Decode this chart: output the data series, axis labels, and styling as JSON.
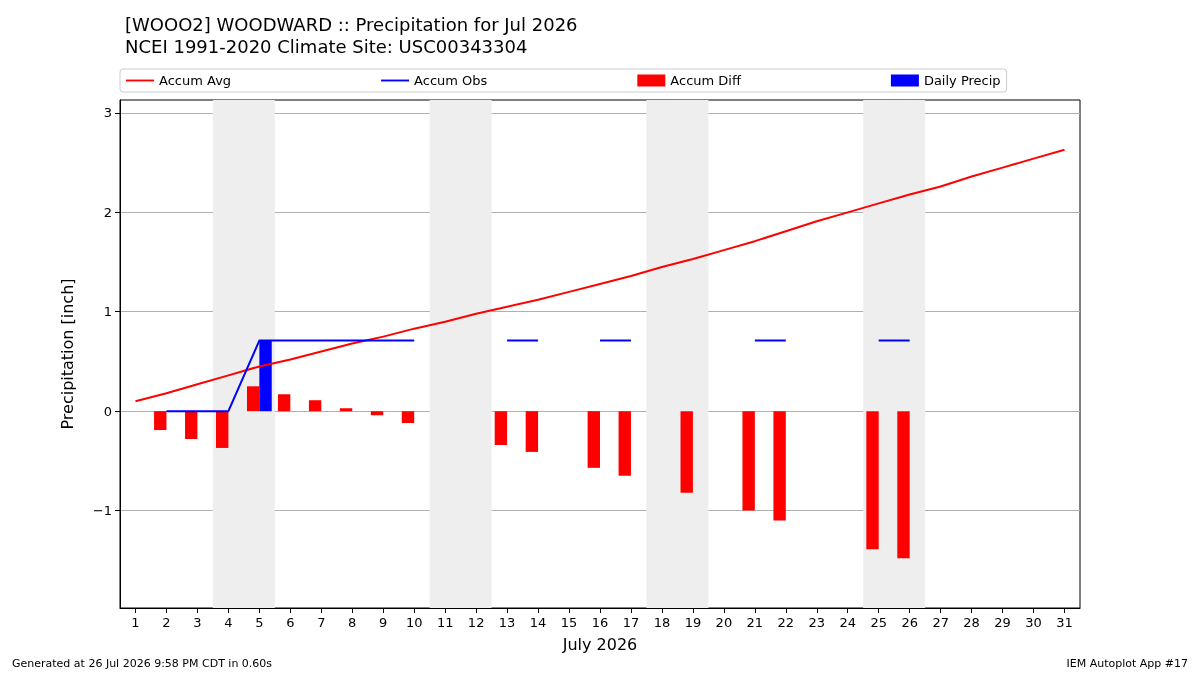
{
  "chart_data": {
    "type": "bar",
    "title": "[WOOO2] WOODWARD :: Precipitation for Jul 2026",
    "subtitle": "NCEI 1991-2020 Climate Site: USC00343304",
    "xlabel": "July 2026",
    "ylabel": "Precipitation [inch]",
    "x": [
      1,
      2,
      3,
      4,
      5,
      6,
      7,
      8,
      9,
      10,
      11,
      12,
      13,
      14,
      15,
      16,
      17,
      18,
      19,
      20,
      21,
      22,
      23,
      24,
      25,
      26,
      27,
      28,
      29,
      30,
      31
    ],
    "series": [
      {
        "name": "Accum Avg",
        "type": "line",
        "color": "#ff0000",
        "values": [
          0.1,
          0.18,
          0.27,
          0.36,
          0.45,
          0.52,
          0.6,
          0.68,
          0.75,
          0.83,
          0.9,
          0.98,
          1.05,
          1.12,
          1.2,
          1.28,
          1.36,
          1.45,
          1.53,
          1.62,
          1.71,
          1.81,
          1.91,
          2.0,
          2.09,
          2.18,
          2.26,
          2.36,
          2.45,
          2.54,
          2.63
        ]
      },
      {
        "name": "Accum Obs",
        "type": "line",
        "color": "#0000ff",
        "values": [
          null,
          0,
          0,
          0,
          0.71,
          0.71,
          0.71,
          0.71,
          0.71,
          0.71,
          null,
          null,
          0.71,
          0.71,
          null,
          0.71,
          0.71,
          null,
          null,
          null,
          0.71,
          0.71,
          null,
          null,
          0.71,
          0.71,
          null,
          null,
          null,
          null,
          null
        ]
      },
      {
        "name": "Accum Diff",
        "color": "#ff0000",
        "values": [
          null,
          -0.19,
          -0.28,
          -0.37,
          0.25,
          0.17,
          0.11,
          0.03,
          -0.04,
          -0.12,
          null,
          null,
          -0.34,
          -0.41,
          null,
          -0.57,
          -0.65,
          null,
          -0.82,
          null,
          -1.0,
          -1.1,
          null,
          null,
          -1.39,
          -1.48,
          null,
          null,
          null,
          null,
          null
        ]
      },
      {
        "name": "Daily Precip",
        "color": "#0000ff",
        "values": [
          null,
          null,
          null,
          null,
          0.71,
          null,
          null,
          null,
          null,
          null,
          null,
          null,
          null,
          null,
          null,
          null,
          null,
          null,
          null,
          null,
          null,
          null,
          null,
          null,
          null,
          null,
          null,
          null,
          null,
          null,
          null
        ]
      }
    ],
    "xlim": [
      0.5,
      31.5
    ],
    "xticks": [
      1,
      2,
      3,
      4,
      5,
      6,
      7,
      8,
      9,
      10,
      11,
      12,
      13,
      14,
      15,
      16,
      17,
      18,
      19,
      20,
      21,
      22,
      23,
      24,
      25,
      26,
      27,
      28,
      29,
      30,
      31
    ],
    "ylim": [
      -1.98,
      3.13
    ],
    "yticks": [
      {
        "value": -1,
        "label": "−1"
      },
      0,
      1,
      2,
      3
    ],
    "bands": [
      {
        "axis": "x",
        "from": 3.5,
        "to": 5.5,
        "color": "#eeeeee"
      },
      {
        "axis": "x",
        "from": 10.5,
        "to": 12.5,
        "color": "#eeeeee"
      },
      {
        "axis": "x",
        "from": 17.5,
        "to": 19.5,
        "color": "#eeeeee"
      },
      {
        "axis": "x",
        "from": 24.5,
        "to": 26.5,
        "color": "#eeeeee"
      }
    ],
    "grid": "y",
    "legend": "top",
    "annotations": [
      "Generated at 26 Jul 2026 9:58 PM CDT in 0.60s",
      "IEM Autoplot App #17"
    ]
  }
}
